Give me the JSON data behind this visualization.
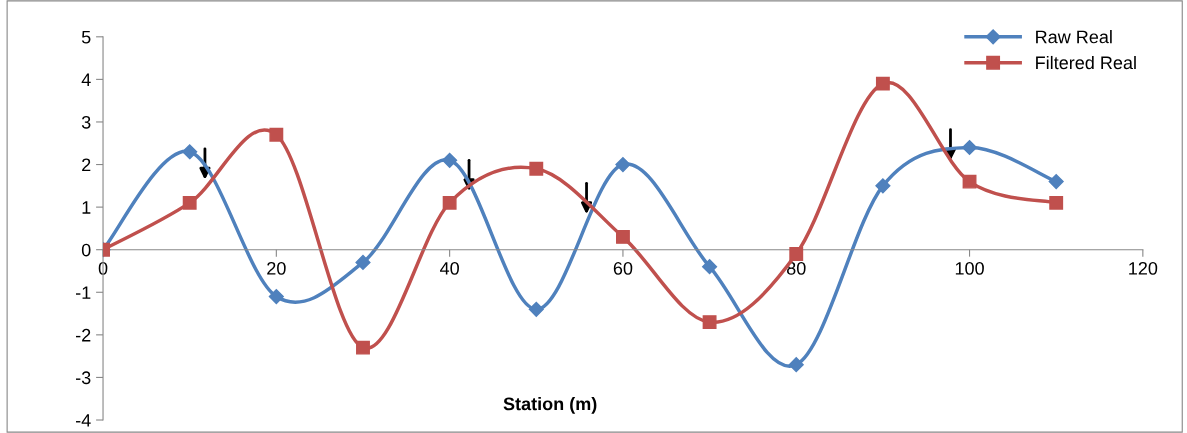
{
  "chart_data": {
    "type": "line",
    "xlabel": "Station (m)",
    "x": [
      0,
      10,
      20,
      30,
      40,
      50,
      60,
      70,
      80,
      90,
      100,
      110
    ],
    "series": [
      {
        "name": "Raw Real",
        "color": "#4f81bd",
        "marker": "diamond",
        "values": [
          0,
          2.3,
          -1.1,
          -0.3,
          2.1,
          -1.4,
          2.0,
          -0.4,
          -2.7,
          1.5,
          2.4,
          1.6
        ]
      },
      {
        "name": "Filtered Real",
        "color": "#c0504d",
        "marker": "square",
        "values": [
          0,
          1.1,
          2.7,
          -2.3,
          1.1,
          1.9,
          0.3,
          -1.7,
          -0.1,
          3.9,
          1.6,
          1.1
        ]
      }
    ],
    "xlim": [
      0,
      120
    ],
    "xticks": [
      0,
      20,
      40,
      60,
      80,
      100,
      120
    ],
    "ylim": [
      -4,
      5
    ],
    "yticks": [
      -4,
      -3,
      -2,
      -1,
      0,
      1,
      2,
      3,
      4,
      5
    ],
    "legend": "top right",
    "grid": false
  }
}
